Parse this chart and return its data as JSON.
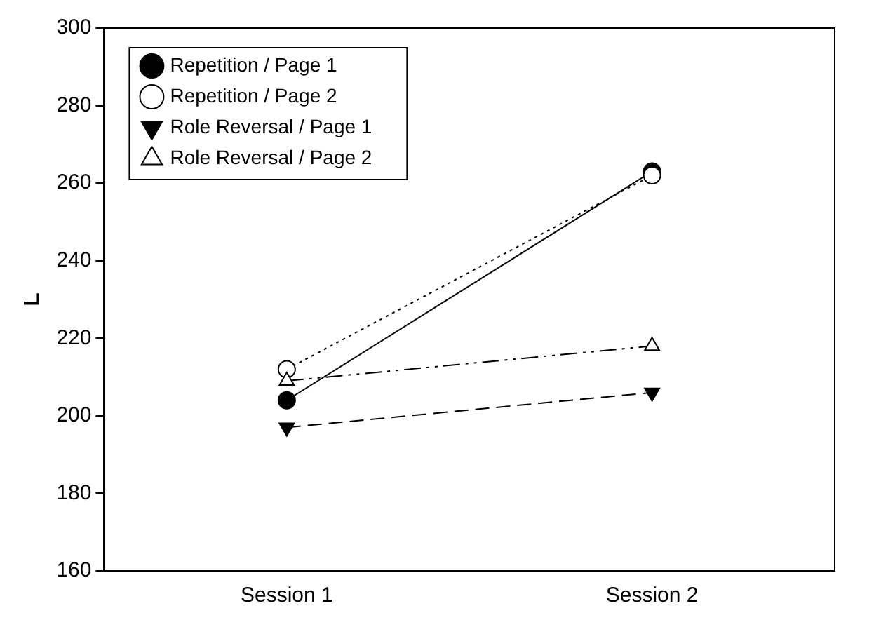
{
  "chart_data": {
    "type": "line",
    "ylabel": "L",
    "categories": [
      "Session 1",
      "Session 2"
    ],
    "series": [
      {
        "name": "Repetition / Page 1",
        "color": "#000000",
        "values": [
          204,
          263
        ],
        "marker": "circle",
        "colors": [
          "#000000",
          "#000000"
        ],
        "line_style": "solid"
      },
      {
        "name": "Repetition / Page 2",
        "color": "#000000",
        "values": [
          212,
          262
        ],
        "marker": "circle",
        "colors": [
          "#ffffff",
          "#ffffff"
        ],
        "line_style": "dotted"
      },
      {
        "name": "Role Reversal / Page 1",
        "color": "#000000",
        "values": [
          197,
          206
        ],
        "marker": "triangle-down",
        "colors": [
          "#000000",
          "#000000"
        ],
        "line_style": "dashed"
      },
      {
        "name": "Role Reversal / Page 2",
        "color": "#000000",
        "values": [
          209,
          218
        ],
        "marker": "triangle",
        "colors": [
          "#ffffff",
          "#ffffff"
        ],
        "line_style": "dashdot"
      }
    ],
    "ylim": [
      160,
      300
    ],
    "yticks": [
      160,
      180,
      200,
      220,
      240,
      260,
      280,
      300
    ],
    "grid": false,
    "legend": "top left"
  }
}
